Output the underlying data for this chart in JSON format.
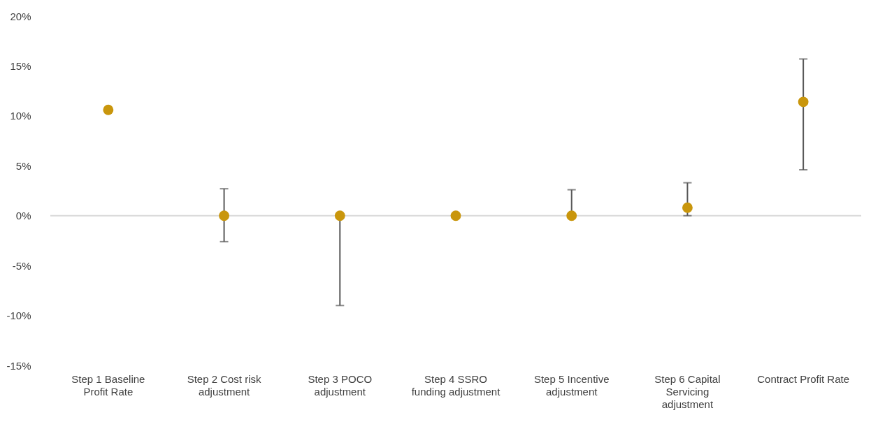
{
  "chart_data": {
    "type": "scatter",
    "categories": [
      "Step 1 Baseline Profit Rate",
      "Step 2 Cost risk adjustment",
      "Step 3 POCO adjustment",
      "Step 4 SSRO funding adjustment",
      "Step 5 Incentive adjustment",
      "Step 6 Capital Servicing adjustment",
      "Contract Profit Rate"
    ],
    "series": [
      {
        "color": "#c9960c",
        "values": [
          10.6,
          0,
          0,
          0,
          0,
          0.8,
          11.4
        ],
        "errors": [
          null,
          [
            -2.6,
            2.7
          ],
          [
            -9.0,
            0
          ],
          null,
          [
            0,
            2.6
          ],
          [
            0,
            3.3
          ],
          [
            4.6,
            15.7
          ]
        ]
      }
    ],
    "ylim": [
      -15,
      20
    ],
    "yticks": [
      {
        "value": -15,
        "label": "-15%"
      },
      {
        "value": -10,
        "label": "-10%"
      },
      {
        "value": -5,
        "label": "-5%"
      },
      {
        "value": 0,
        "label": "0%"
      },
      {
        "value": 5,
        "label": "5%"
      },
      {
        "value": 10,
        "label": "10%"
      },
      {
        "value": 15,
        "label": "15%"
      },
      {
        "value": 20,
        "label": "20%"
      }
    ],
    "ref_lines": [
      {
        "axis": "y",
        "value": 0,
        "color": "#d9d9d9"
      }
    ],
    "grid": false,
    "marker": "circle"
  }
}
